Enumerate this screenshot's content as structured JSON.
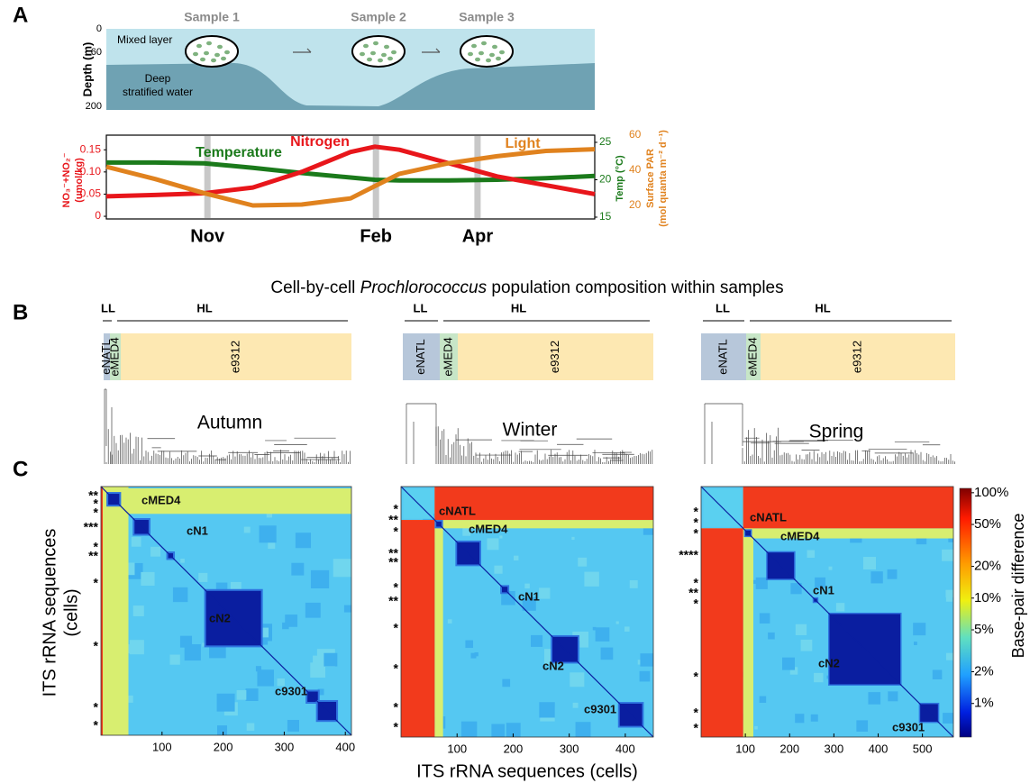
{
  "panel_a": {
    "label": "A",
    "samples": [
      "Sample 1",
      "Sample 2",
      "Sample 3"
    ],
    "depth_axis": {
      "title": "Depth (m)",
      "ticks": [
        0,
        60,
        200
      ]
    },
    "mixed_layer": "Mixed layer",
    "deep_water": [
      "Deep",
      "stratified water"
    ],
    "chart_data": {
      "type": "line",
      "x": [
        0,
        10,
        20,
        30,
        40,
        50,
        55,
        60,
        70,
        80,
        90,
        100
      ],
      "xlim": [
        0,
        100
      ],
      "xticks": [
        {
          "value": 20.7,
          "label": "Nov"
        },
        {
          "value": 55.2,
          "label": "Feb"
        },
        {
          "value": 76,
          "label": "Apr"
        }
      ],
      "ylim": [
        -0.006,
        0.183
      ],
      "yticks": [
        0,
        {
          "value": 0.05,
          "label": "0.05"
        },
        {
          "value": 0.1,
          "label": "0.10"
        },
        {
          "value": 0.15,
          "label": "0.15"
        }
      ],
      "y_label": [
        "NO₃⁻+NO₂⁻",
        "(umol/kg)"
      ],
      "y2lim": [
        14.76,
        25.96
      ],
      "y2ticks": [
        15,
        20,
        25
      ],
      "y2_label": "Temp (°C)",
      "y3lim": [
        12.3,
        60
      ],
      "y3ticks": [
        20,
        40,
        60
      ],
      "y3_label": [
        "Surface PAR",
        "(mol quanta m⁻² d⁻¹)"
      ],
      "series": [
        {
          "name": "Temperature",
          "color": "#1b7a1b",
          "axis": "y2",
          "values": [
            22.3,
            22.3,
            22.2,
            21.6,
            20.9,
            20.3,
            20.0,
            19.9,
            19.9,
            20.0,
            20.2,
            20.5
          ]
        },
        {
          "name": "Nitrogen",
          "color": "#e8161b",
          "axis": "y",
          "values": [
            0.045,
            0.048,
            0.052,
            0.065,
            0.1,
            0.145,
            0.157,
            0.15,
            0.12,
            0.09,
            0.07,
            0.05
          ]
        },
        {
          "name": "Light",
          "color": "#e0821e",
          "axis": "y3",
          "values": [
            42,
            35,
            27,
            20,
            20.5,
            24,
            31,
            38,
            44,
            48,
            51,
            52
          ]
        }
      ]
    }
  },
  "panel_b": {
    "label": "B",
    "title": [
      "Cell-by-cell ",
      "Prochlorococcus",
      " population composition within samples"
    ],
    "samples": [
      {
        "ll": "LL",
        "hl": "HL",
        "clades": [
          "eNATL",
          "eMED4",
          "e9312"
        ],
        "season": "Autumn"
      },
      {
        "ll": "LL",
        "hl": "HL",
        "clades": [
          "eNATL",
          "eMED4",
          "e9312"
        ],
        "season": "Winter"
      },
      {
        "ll": "LL",
        "hl": "HL",
        "clades": [
          "eNATL",
          "eMED4",
          "e9312"
        ],
        "season": "Spring"
      }
    ]
  },
  "panel_c": {
    "label": "C",
    "y_title": [
      "ITS rRNA sequences",
      "(cells)"
    ],
    "x_title": "ITS rRNA sequences (cells)",
    "heatmaps": [
      {
        "xlim": [
          0,
          410
        ],
        "xticks": [
          100,
          200,
          300,
          400
        ],
        "clusters": [
          "cMED4",
          "cN1",
          "cN2",
          "c9301"
        ],
        "stars": [
          "**",
          "*",
          "*",
          "***",
          "*",
          "**",
          "*",
          "*",
          "*",
          "*"
        ]
      },
      {
        "xlim": [
          0,
          450
        ],
        "xticks": [
          100,
          200,
          300,
          400
        ],
        "clusters": [
          "cNATL",
          "cMED4",
          "cN1",
          "cN2",
          "c9301"
        ],
        "stars": [
          "*",
          "**",
          "*",
          "**",
          "**",
          "*",
          "**",
          "*",
          "*",
          "*",
          "*"
        ]
      },
      {
        "xlim": [
          0,
          570
        ],
        "xticks": [
          100,
          200,
          300,
          400,
          500
        ],
        "clusters": [
          "cNATL",
          "cMED4",
          "cN1",
          "cN2",
          "c9301"
        ],
        "stars": [
          "*",
          "*",
          "*",
          "****",
          "*",
          "**",
          "*",
          "*",
          "*",
          "*"
        ]
      }
    ],
    "colorbar": {
      "title": "Base-pair difference",
      "log": true,
      "lim": [
        0.48,
        110
      ],
      "ticks": [
        {
          "value": 100,
          "label": "100%"
        },
        {
          "value": 50,
          "label": "50%"
        },
        {
          "value": 20,
          "label": "20%"
        },
        {
          "value": 10,
          "label": "10%"
        },
        {
          "value": 5,
          "label": "5%"
        },
        {
          "value": 2,
          "label": "2%"
        },
        {
          "value": 1,
          "label": "1%"
        }
      ]
    }
  }
}
